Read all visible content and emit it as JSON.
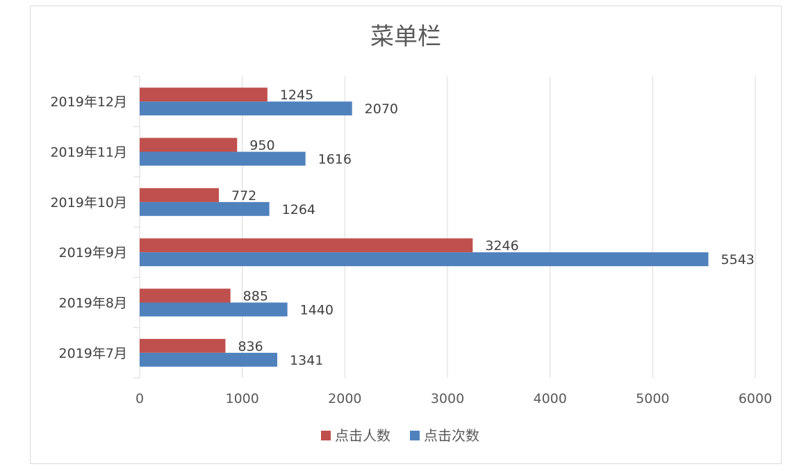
{
  "chart_data": {
    "type": "bar",
    "orientation": "horizontal",
    "title": "菜单栏",
    "categories": [
      "2019年7月",
      "2019年8月",
      "2019年9月",
      "2019年10月",
      "2019年11月",
      "2019年12月"
    ],
    "series": [
      {
        "name": "点击人数",
        "color": "#c0504d",
        "values": [
          836,
          885,
          3246,
          772,
          950,
          1245
        ]
      },
      {
        "name": "点击次数",
        "color": "#4f81bd",
        "values": [
          1341,
          1440,
          5543,
          1264,
          1616,
          2070
        ]
      }
    ],
    "xlim": [
      0,
      6000
    ],
    "xticks": [
      "0",
      "1000",
      "2000",
      "3000",
      "4000",
      "5000",
      "6000"
    ],
    "grid": true,
    "legend_position": "bottom"
  }
}
